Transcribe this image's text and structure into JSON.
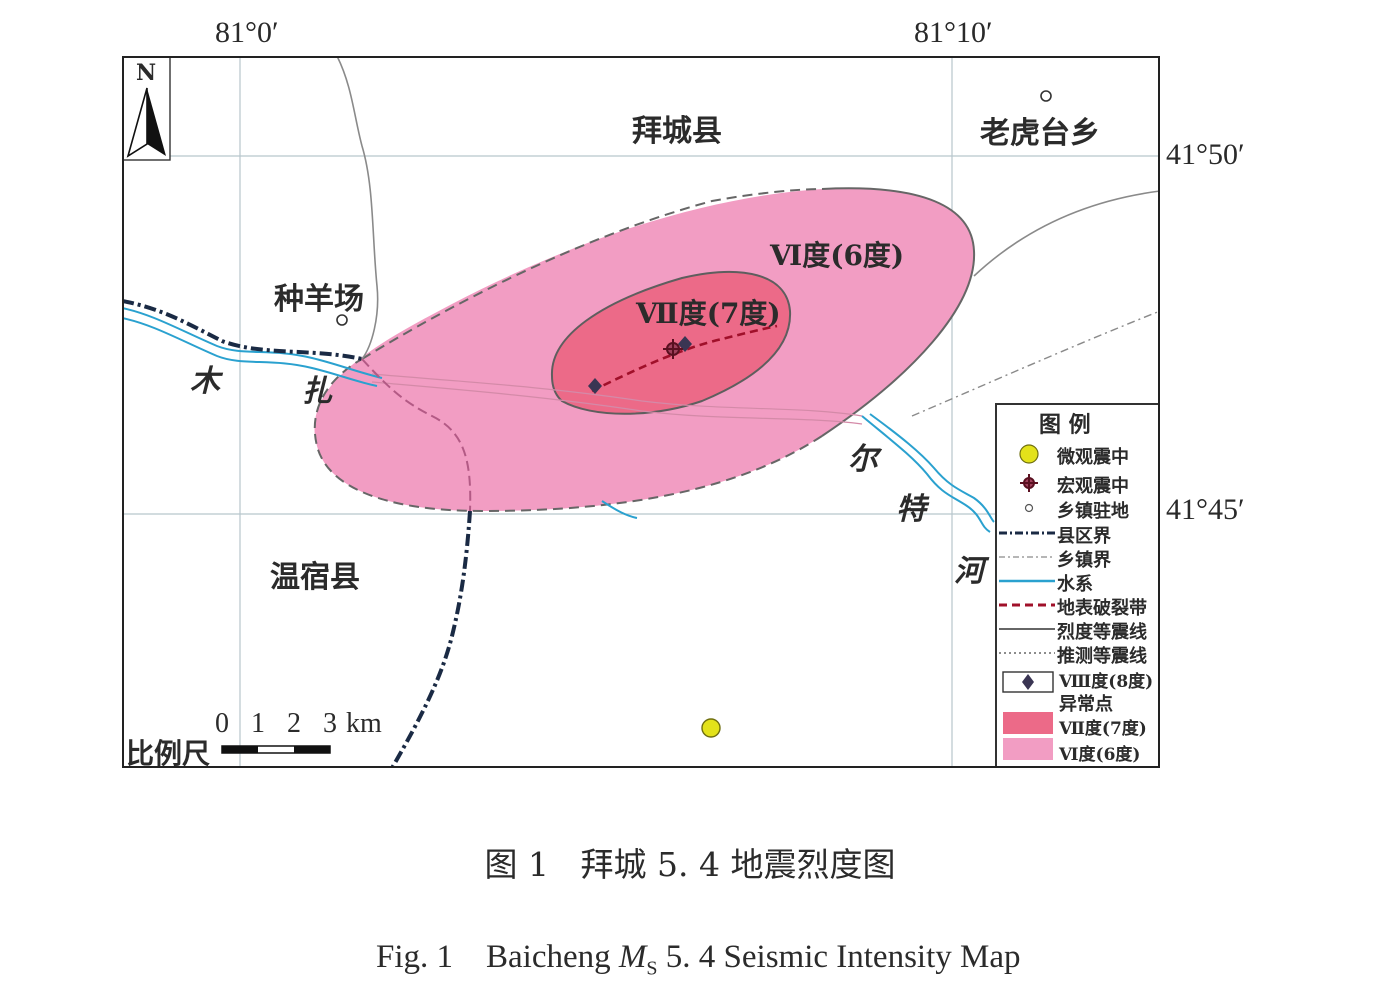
{
  "coords": {
    "lon_left": "81°0′",
    "lon_right": "81°10′",
    "lat_top": "41°50′",
    "lat_bottom": "41°45′"
  },
  "north_label": "N",
  "places": {
    "baicheng": "拜城县",
    "laohutai": "老虎台乡",
    "zhongyangchang": "种羊场",
    "wensu": "温宿县"
  },
  "river_chars": [
    "木",
    "扎",
    "尔",
    "特",
    "河"
  ],
  "zones": {
    "vi_label": "Ⅵ度(6度)",
    "vii_label": "Ⅶ度(7度)"
  },
  "scale": {
    "title": "比例尺",
    "ticks": [
      "0",
      "1",
      "2",
      "3"
    ],
    "unit": "km"
  },
  "legend": {
    "title": "图 例",
    "items": {
      "micro": "微观震中",
      "macro": "宏观震中",
      "town": "乡镇驻地",
      "county": "县区界",
      "township": "乡镇界",
      "water": "水系",
      "rupture": "地表破裂带",
      "isoseismal": "烈度等震线",
      "inferred": "推测等震线",
      "anomaly_1": "Ⅷ度(8度)",
      "anomaly_2": "异常点",
      "vii": "Ⅶ度(7度)",
      "vi": "Ⅵ度(6度)"
    }
  },
  "colors": {
    "zone_vi": "#f29dc3",
    "zone_vii": "#ec6a88",
    "county_border": "#1a2a44",
    "river": "#2aa1cf",
    "rupture": "#a0102a",
    "micro_epicenter": "#e3e21a"
  },
  "caption": {
    "cn": "图 1   拜城 5. 4 地震烈度图",
    "en_prefix": "Fig. 1    Baicheng ",
    "en_m": "M",
    "en_sub": "S",
    "en_suffix": " 5. 4 Seismic Intensity Map"
  }
}
